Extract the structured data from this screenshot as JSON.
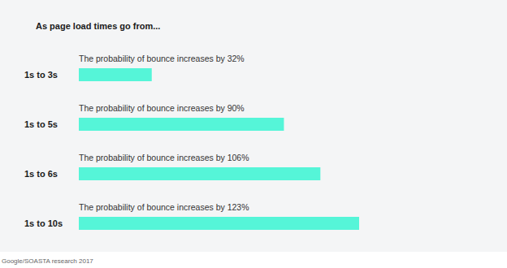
{
  "chart_data": {
    "type": "bar",
    "orientation": "horizontal",
    "title": "As page load times go from...",
    "categories": [
      "1s to 3s",
      "1s to 5s",
      "1s to 6s",
      "1s to 10s"
    ],
    "values": [
      32,
      90,
      106,
      123
    ],
    "value_labels": [
      "The probability of bounce increases by 32%",
      "The probability of bounce increases by 90%",
      "The probability of bounce increases by 106%",
      "The probability of bounce increases by 123%"
    ],
    "data_labels": true,
    "color": "#55f5d8",
    "xlim": [
      0,
      123
    ],
    "tick_labels": false,
    "grid": false,
    "source": "Google/SOASTA research 2017"
  }
}
